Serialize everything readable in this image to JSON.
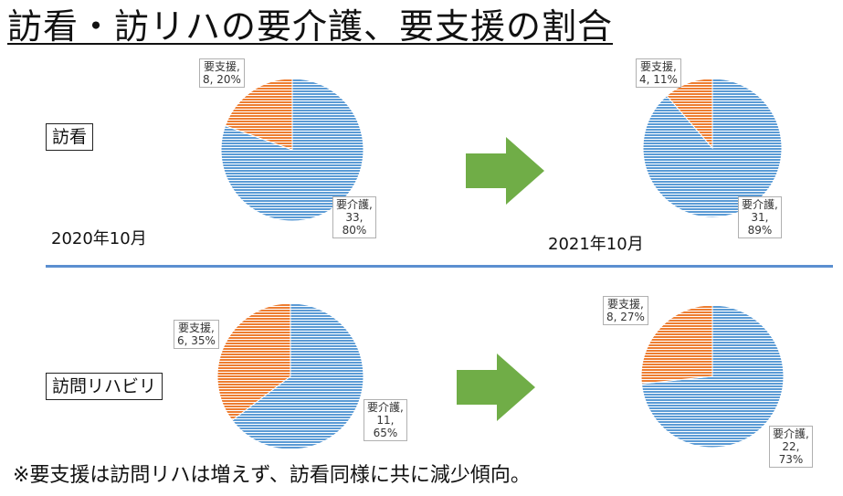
{
  "title": "訪看・訪リハの要介護、要支援の割合",
  "rows": {
    "houkan_label": "訪看",
    "rehab_label": "訪問リハビリ"
  },
  "dates": {
    "before": "2020年10月",
    "after": "2021年10月"
  },
  "footnote": "※要支援は訪問リハは増えず、訪看同様に共に減少傾向。",
  "colors": {
    "care": "#5b9bd5",
    "support": "#ed7d31",
    "arrow": "#70ad47",
    "divider": "#5b8fd0"
  },
  "chart_data": [
    {
      "type": "pie",
      "row": "訪看",
      "period": "2020年10月",
      "series": [
        {
          "category": "要介護",
          "value": 33,
          "percent": "80%"
        },
        {
          "category": "要支援",
          "value": 8,
          "percent": "20%"
        }
      ],
      "labels": {
        "care": [
          "要介護,",
          "33,",
          "80%"
        ],
        "support": [
          "要支援,",
          "8, 20%"
        ]
      }
    },
    {
      "type": "pie",
      "row": "訪看",
      "period": "2021年10月",
      "series": [
        {
          "category": "要介護",
          "value": 31,
          "percent": "89%"
        },
        {
          "category": "要支援",
          "value": 4,
          "percent": "11%"
        }
      ],
      "labels": {
        "care": [
          "要介護,",
          "31,",
          "89%"
        ],
        "support": [
          "要支援,",
          "4, 11%"
        ]
      }
    },
    {
      "type": "pie",
      "row": "訪問リハビリ",
      "period": "2020年10月",
      "series": [
        {
          "category": "要介護",
          "value": 11,
          "percent": "65%"
        },
        {
          "category": "要支援",
          "value": 6,
          "percent": "35%"
        }
      ],
      "labels": {
        "care": [
          "要介護,",
          "11,",
          "65%"
        ],
        "support": [
          "要支援,",
          "6, 35%"
        ]
      }
    },
    {
      "type": "pie",
      "row": "訪問リハビリ",
      "period": "2021年10月",
      "series": [
        {
          "category": "要介護",
          "value": 22,
          "percent": "73%"
        },
        {
          "category": "要支援",
          "value": 8,
          "percent": "27%"
        }
      ],
      "labels": {
        "care": [
          "要介護,",
          "22,",
          "73%"
        ],
        "support": [
          "要支援,",
          "8, 27%"
        ]
      }
    }
  ]
}
